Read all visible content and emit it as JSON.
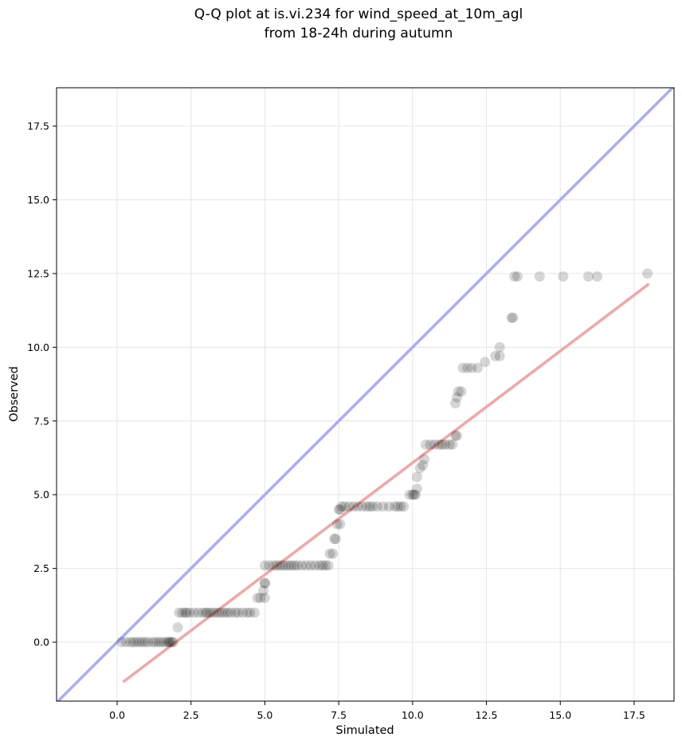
{
  "chart_data": {
    "type": "scatter",
    "title_line1": "Q-Q plot at is.vi.234 for wind_speed_at_10m_agl",
    "title_line2": "from 18-24h during autumn",
    "xlabel": "Simulated",
    "ylabel": "Observed",
    "xlim": [
      -2.05,
      18.85
    ],
    "ylim": [
      -2.0,
      18.8
    ],
    "xticks": [
      "0.0",
      "2.5",
      "5.0",
      "7.5",
      "10.0",
      "12.5",
      "15.0",
      "17.5"
    ],
    "yticks": [
      "0.0",
      "2.5",
      "5.0",
      "7.5",
      "10.0",
      "12.5",
      "15.0",
      "17.5"
    ],
    "xtick_values": [
      0,
      2.5,
      5,
      7.5,
      10,
      12.5,
      15,
      17.5
    ],
    "ytick_values": [
      0,
      2.5,
      5,
      7.5,
      10,
      12.5,
      15,
      17.5
    ],
    "grid": true,
    "identity_line": {
      "from": [
        -2.05,
        -2.05
      ],
      "to": [
        18.85,
        18.85
      ],
      "color": "#aaaaff"
    },
    "fit_line": {
      "from": [
        0.2,
        -1.35
      ],
      "to": [
        18.0,
        12.15
      ],
      "color": "#f4a6a6"
    },
    "point_color": "#000000",
    "point_opacity": 0.16,
    "points": [
      [
        0.15,
        0.0
      ],
      [
        0.3,
        0.0
      ],
      [
        0.45,
        0.0
      ],
      [
        0.55,
        0.0
      ],
      [
        0.65,
        0.0
      ],
      [
        0.75,
        0.0
      ],
      [
        0.85,
        0.0
      ],
      [
        0.95,
        0.0
      ],
      [
        1.05,
        0.0
      ],
      [
        1.2,
        0.0
      ],
      [
        1.3,
        0.0
      ],
      [
        1.4,
        0.0
      ],
      [
        1.5,
        0.0
      ],
      [
        1.6,
        0.0
      ],
      [
        1.7,
        0.0
      ],
      [
        1.75,
        0.0
      ],
      [
        1.8,
        0.0
      ],
      [
        1.85,
        0.0
      ],
      [
        1.9,
        0.0
      ],
      [
        2.05,
        0.5
      ],
      [
        2.1,
        1.0
      ],
      [
        2.2,
        1.0
      ],
      [
        2.3,
        1.0
      ],
      [
        2.35,
        1.0
      ],
      [
        2.45,
        1.0
      ],
      [
        2.6,
        1.0
      ],
      [
        2.75,
        1.0
      ],
      [
        2.9,
        1.0
      ],
      [
        3.0,
        1.0
      ],
      [
        3.05,
        1.0
      ],
      [
        3.15,
        1.0
      ],
      [
        3.25,
        1.0
      ],
      [
        3.35,
        1.0
      ],
      [
        3.45,
        1.0
      ],
      [
        3.55,
        1.0
      ],
      [
        3.65,
        1.0
      ],
      [
        3.75,
        1.0
      ],
      [
        3.85,
        1.0
      ],
      [
        4.0,
        1.0
      ],
      [
        4.1,
        1.0
      ],
      [
        4.25,
        1.0
      ],
      [
        4.4,
        1.0
      ],
      [
        4.5,
        1.0
      ],
      [
        4.65,
        1.0
      ],
      [
        4.75,
        1.5
      ],
      [
        4.85,
        1.5
      ],
      [
        5.0,
        1.5
      ],
      [
        4.95,
        1.75
      ],
      [
        5.0,
        2.0
      ],
      [
        5.0,
        2.0
      ],
      [
        5.0,
        2.6
      ],
      [
        5.15,
        2.6
      ],
      [
        5.3,
        2.6
      ],
      [
        5.4,
        2.6
      ],
      [
        5.5,
        2.6
      ],
      [
        5.6,
        2.6
      ],
      [
        5.7,
        2.6
      ],
      [
        5.8,
        2.6
      ],
      [
        5.9,
        2.6
      ],
      [
        6.0,
        2.6
      ],
      [
        6.1,
        2.6
      ],
      [
        6.25,
        2.6
      ],
      [
        6.4,
        2.6
      ],
      [
        6.55,
        2.6
      ],
      [
        6.7,
        2.6
      ],
      [
        6.85,
        2.6
      ],
      [
        6.95,
        2.6
      ],
      [
        7.05,
        2.6
      ],
      [
        7.15,
        2.6
      ],
      [
        7.2,
        3.0
      ],
      [
        7.3,
        3.0
      ],
      [
        7.35,
        3.5
      ],
      [
        7.4,
        3.5
      ],
      [
        7.45,
        4.0
      ],
      [
        7.55,
        4.0
      ],
      [
        7.5,
        4.5
      ],
      [
        7.55,
        4.5
      ],
      [
        7.6,
        4.6
      ],
      [
        7.7,
        4.6
      ],
      [
        7.85,
        4.6
      ],
      [
        8.0,
        4.6
      ],
      [
        8.15,
        4.6
      ],
      [
        8.3,
        4.6
      ],
      [
        8.45,
        4.6
      ],
      [
        8.55,
        4.6
      ],
      [
        8.65,
        4.6
      ],
      [
        8.8,
        4.6
      ],
      [
        9.0,
        4.6
      ],
      [
        9.2,
        4.6
      ],
      [
        9.4,
        4.6
      ],
      [
        9.5,
        4.6
      ],
      [
        9.6,
        4.6
      ],
      [
        9.7,
        4.6
      ],
      [
        9.9,
        5.0
      ],
      [
        10.0,
        5.0
      ],
      [
        10.05,
        5.0
      ],
      [
        10.1,
        5.0
      ],
      [
        10.15,
        5.2
      ],
      [
        10.15,
        5.6
      ],
      [
        10.25,
        5.9
      ],
      [
        10.35,
        6.0
      ],
      [
        10.4,
        6.2
      ],
      [
        10.45,
        6.7
      ],
      [
        10.6,
        6.7
      ],
      [
        10.75,
        6.7
      ],
      [
        10.9,
        6.7
      ],
      [
        11.0,
        6.7
      ],
      [
        11.1,
        6.7
      ],
      [
        11.25,
        6.7
      ],
      [
        11.35,
        6.7
      ],
      [
        11.45,
        7.0
      ],
      [
        11.5,
        7.0
      ],
      [
        11.45,
        8.1
      ],
      [
        11.5,
        8.3
      ],
      [
        11.55,
        8.5
      ],
      [
        11.65,
        8.5
      ],
      [
        11.7,
        9.3
      ],
      [
        11.85,
        9.3
      ],
      [
        12.0,
        9.3
      ],
      [
        12.2,
        9.3
      ],
      [
        12.45,
        9.5
      ],
      [
        12.8,
        9.7
      ],
      [
        12.95,
        9.7
      ],
      [
        12.95,
        10.0
      ],
      [
        13.35,
        11.0
      ],
      [
        13.4,
        11.0
      ],
      [
        13.45,
        12.4
      ],
      [
        13.55,
        12.4
      ],
      [
        14.3,
        12.4
      ],
      [
        15.1,
        12.4
      ],
      [
        15.95,
        12.4
      ],
      [
        16.25,
        12.4
      ],
      [
        17.95,
        12.5
      ]
    ]
  }
}
